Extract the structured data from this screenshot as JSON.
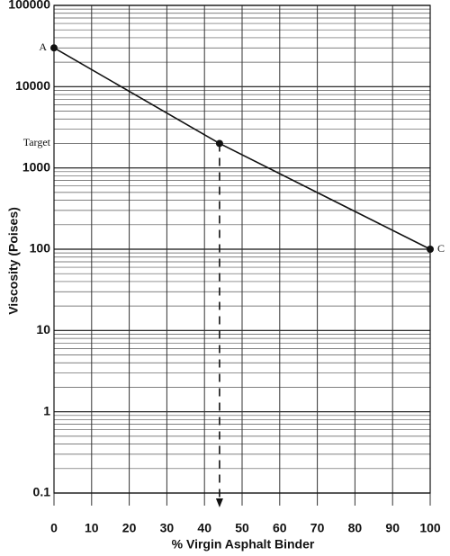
{
  "chart_data": {
    "type": "line",
    "xlabel": "% Virgin Asphalt Binder",
    "ylabel": "Viscosity (Poises)",
    "x": [
      0,
      44,
      100
    ],
    "values": [
      30000,
      2000,
      100
    ],
    "point_labels": [
      "A",
      "Target",
      "C"
    ],
    "color": "#111111",
    "xlim": [
      0,
      100
    ],
    "xticks": [
      0,
      10,
      20,
      30,
      40,
      50,
      60,
      70,
      80,
      90,
      100
    ],
    "ylim": [
      0.1,
      100000
    ],
    "yticks": [
      0.1,
      1,
      10,
      100,
      1000,
      10000,
      100000
    ],
    "log_y": true,
    "grid": true
  }
}
